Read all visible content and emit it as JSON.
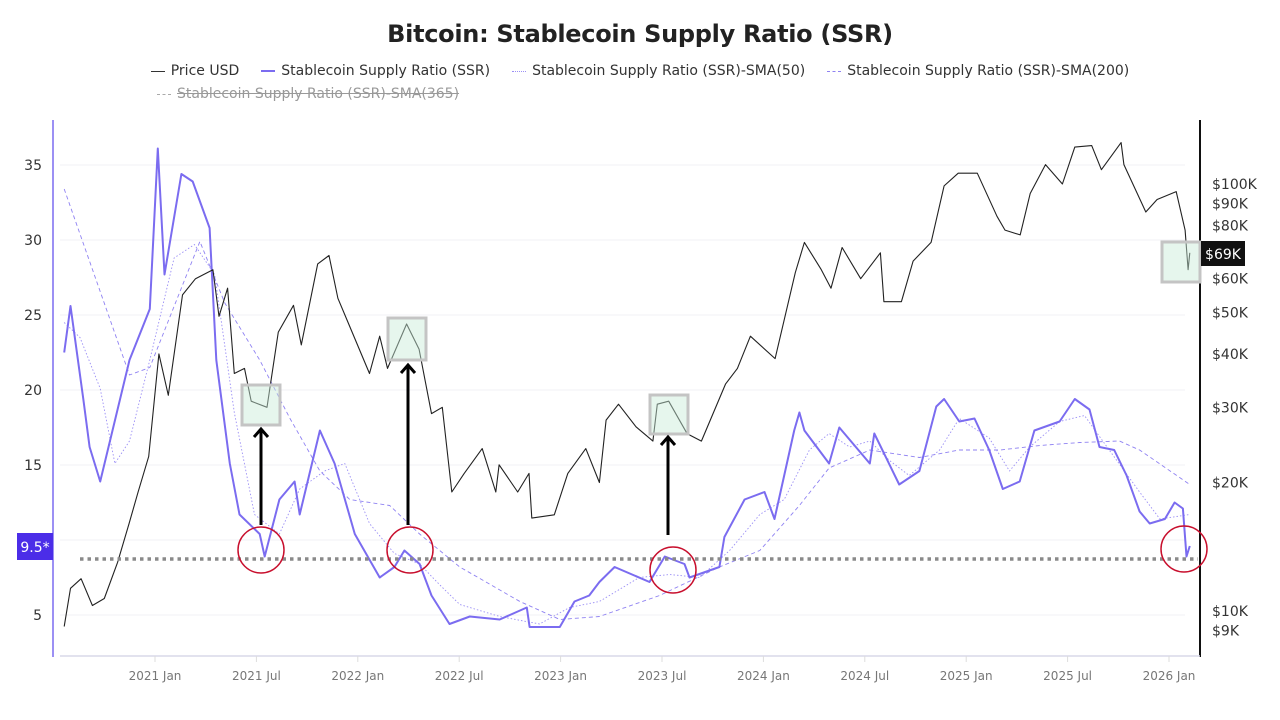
{
  "title": "Bitcoin: Stablecoin Supply Ratio (SSR)",
  "legend": [
    {
      "label": "Price USD",
      "color": "#333333",
      "style": "solid",
      "visible": true
    },
    {
      "label": "Stablecoin Supply Ratio (SSR)",
      "color": "#7b6cf0",
      "style": "solid",
      "visible": true
    },
    {
      "label": "Stablecoin Supply Ratio (SSR)-SMA(50)",
      "color": "#9b8ff5",
      "style": "dotted",
      "visible": true
    },
    {
      "label": "Stablecoin Supply Ratio (SSR)-SMA(200)",
      "color": "#8f82f2",
      "style": "dashed",
      "visible": true
    },
    {
      "label": "Stablecoin Supply Ratio (SSR)-SMA(365)",
      "color": "#aaaaaa",
      "style": "dashed",
      "visible": false
    }
  ],
  "chart_data": {
    "type": "line",
    "title": "Bitcoin: Stablecoin Supply Ratio (SSR)",
    "grid": true,
    "legend_position": "top",
    "x_ticks": [
      "2021 Jan",
      "2021 Jul",
      "2022 Jan",
      "2022 Jul",
      "2023 Jan",
      "2023 Jul",
      "2024 Jan",
      "2024 Jul",
      "2025 Jan",
      "2025 Jul",
      "2026 Jan"
    ],
    "x_tick_dates": [
      "2021-01-01",
      "2021-07-01",
      "2022-01-01",
      "2022-07-01",
      "2023-01-01",
      "2023-07-01",
      "2024-01-01",
      "2024-07-01",
      "2025-01-01",
      "2025-07-01",
      "2026-01-01"
    ],
    "xlim": [
      "2020-07-04",
      "2026-02-25"
    ],
    "y_left": {
      "scale": "linear",
      "ylim": [
        2.3,
        38
      ],
      "ticks": [
        5,
        15,
        20,
        25,
        30,
        35
      ],
      "tick_labels": [
        "5",
        "15",
        "20",
        "25",
        "30",
        "35"
      ],
      "color": "#7b6cf0"
    },
    "y_right": {
      "scale": "log",
      "ylim": [
        7900,
        141000
      ],
      "ticks": [
        9000,
        10000,
        20000,
        30000,
        40000,
        50000,
        60000,
        80000,
        90000,
        100000
      ],
      "tick_labels": [
        "$9K",
        "$10K",
        "$20K",
        "$30K",
        "$40K",
        "$50K",
        "$60K",
        "$80K",
        "$90K",
        "$100K"
      ],
      "color": "#111111"
    },
    "marker_left": {
      "label": "9.5*",
      "value": 9.5,
      "color": "#4b2de8"
    },
    "marker_right": {
      "label": "$69K",
      "value": 69000,
      "color": "#111111"
    },
    "series": [
      {
        "name": "Price USD",
        "axis": "right",
        "color": "#222222",
        "points": [
          [
            "2020-07-20",
            9200
          ],
          [
            "2020-08-01",
            11300
          ],
          [
            "2020-08-20",
            11900
          ],
          [
            "2020-09-10",
            10300
          ],
          [
            "2020-10-01",
            10700
          ],
          [
            "2020-10-25",
            13000
          ],
          [
            "2020-11-15",
            16000
          ],
          [
            "2020-12-01",
            19000
          ],
          [
            "2020-12-20",
            23000
          ],
          [
            "2021-01-08",
            40000
          ],
          [
            "2021-01-25",
            32000
          ],
          [
            "2021-02-20",
            55000
          ],
          [
            "2021-03-13",
            60000
          ],
          [
            "2021-04-14",
            63000
          ],
          [
            "2021-04-25",
            49000
          ],
          [
            "2021-05-10",
            57000
          ],
          [
            "2021-05-22",
            36000
          ],
          [
            "2021-06-10",
            37000
          ],
          [
            "2021-06-22",
            31000
          ],
          [
            "2021-07-20",
            30000
          ],
          [
            "2021-08-10",
            45000
          ],
          [
            "2021-09-07",
            52000
          ],
          [
            "2021-09-21",
            42000
          ],
          [
            "2021-10-20",
            65000
          ],
          [
            "2021-11-10",
            68000
          ],
          [
            "2021-11-26",
            54000
          ],
          [
            "2021-12-15",
            47000
          ],
          [
            "2022-01-22",
            36000
          ],
          [
            "2022-02-10",
            44000
          ],
          [
            "2022-02-24",
            37000
          ],
          [
            "2022-03-28",
            47000
          ],
          [
            "2022-04-20",
            41000
          ],
          [
            "2022-05-12",
            29000
          ],
          [
            "2022-06-01",
            30000
          ],
          [
            "2022-06-18",
            19000
          ],
          [
            "2022-07-10",
            21000
          ],
          [
            "2022-08-12",
            24000
          ],
          [
            "2022-09-06",
            19000
          ],
          [
            "2022-09-12",
            22000
          ],
          [
            "2022-10-15",
            19000
          ],
          [
            "2022-11-05",
            21000
          ],
          [
            "2022-11-10",
            16500
          ],
          [
            "2022-12-20",
            16800
          ],
          [
            "2023-01-14",
            21000
          ],
          [
            "2023-02-16",
            24000
          ],
          [
            "2023-03-10",
            20000
          ],
          [
            "2023-03-22",
            28000
          ],
          [
            "2023-04-14",
            30500
          ],
          [
            "2023-05-15",
            27000
          ],
          [
            "2023-06-15",
            25000
          ],
          [
            "2023-06-23",
            30500
          ],
          [
            "2023-07-13",
            31000
          ],
          [
            "2023-08-16",
            26000
          ],
          [
            "2023-09-11",
            25000
          ],
          [
            "2023-10-24",
            34000
          ],
          [
            "2023-11-15",
            37000
          ],
          [
            "2023-12-08",
            44000
          ],
          [
            "2024-01-22",
            39000
          ],
          [
            "2024-02-28",
            62000
          ],
          [
            "2024-03-14",
            73000
          ],
          [
            "2024-04-14",
            63000
          ],
          [
            "2024-05-01",
            57000
          ],
          [
            "2024-05-21",
            71000
          ],
          [
            "2024-06-24",
            60000
          ],
          [
            "2024-07-29",
            69000
          ],
          [
            "2024-08-05",
            53000
          ],
          [
            "2024-09-06",
            53000
          ],
          [
            "2024-09-27",
            66000
          ],
          [
            "2024-10-29",
            73000
          ],
          [
            "2024-11-22",
            99000
          ],
          [
            "2024-12-17",
            106000
          ],
          [
            "2025-01-21",
            106000
          ],
          [
            "2025-02-26",
            84000
          ],
          [
            "2025-03-10",
            78000
          ],
          [
            "2025-04-07",
            76000
          ],
          [
            "2025-04-25",
            95000
          ],
          [
            "2025-05-22",
            111000
          ],
          [
            "2025-06-22",
            100000
          ],
          [
            "2025-07-14",
            122000
          ],
          [
            "2025-08-14",
            123000
          ],
          [
            "2025-09-01",
            108000
          ],
          [
            "2025-10-06",
            125000
          ],
          [
            "2025-10-11",
            111000
          ],
          [
            "2025-11-20",
            86000
          ],
          [
            "2025-12-10",
            92000
          ],
          [
            "2026-01-14",
            96000
          ],
          [
            "2026-01-30",
            78000
          ],
          [
            "2026-02-05",
            63000
          ],
          [
            "2026-02-08",
            69000
          ]
        ]
      },
      {
        "name": "Stablecoin Supply Ratio (SSR)",
        "axis": "left",
        "color": "#7b6cf0",
        "points": [
          [
            "2020-07-20",
            22.5
          ],
          [
            "2020-08-01",
            25.6
          ],
          [
            "2020-08-24",
            19.4
          ],
          [
            "2020-09-05",
            16.2
          ],
          [
            "2020-09-24",
            13.9
          ],
          [
            "2020-11-16",
            22.0
          ],
          [
            "2020-12-22",
            25.4
          ],
          [
            "2021-01-06",
            36.1
          ],
          [
            "2021-01-18",
            27.7
          ],
          [
            "2021-02-18",
            34.4
          ],
          [
            "2021-03-08",
            33.9
          ],
          [
            "2021-04-08",
            30.8
          ],
          [
            "2021-04-20",
            22.0
          ],
          [
            "2021-05-14",
            15.1
          ],
          [
            "2021-06-01",
            11.7
          ],
          [
            "2021-07-07",
            10.4
          ],
          [
            "2021-07-16",
            8.9
          ],
          [
            "2021-08-12",
            12.7
          ],
          [
            "2021-09-09",
            13.9
          ],
          [
            "2021-09-18",
            11.7
          ],
          [
            "2021-10-24",
            17.3
          ],
          [
            "2021-11-20",
            15.1
          ],
          [
            "2021-12-26",
            10.4
          ],
          [
            "2022-02-10",
            7.5
          ],
          [
            "2022-03-06",
            8.2
          ],
          [
            "2022-03-24",
            9.3
          ],
          [
            "2022-04-21",
            8.4
          ],
          [
            "2022-05-12",
            6.3
          ],
          [
            "2022-06-14",
            4.4
          ],
          [
            "2022-07-20",
            4.9
          ],
          [
            "2022-09-13",
            4.7
          ],
          [
            "2022-11-01",
            5.5
          ],
          [
            "2022-11-06",
            4.2
          ],
          [
            "2022-12-30",
            4.2
          ],
          [
            "2023-01-26",
            5.9
          ],
          [
            "2023-02-22",
            6.3
          ],
          [
            "2023-03-10",
            7.2
          ],
          [
            "2023-04-07",
            8.2
          ],
          [
            "2023-06-09",
            7.2
          ],
          [
            "2023-07-06",
            8.9
          ],
          [
            "2023-08-11",
            8.4
          ],
          [
            "2023-08-20",
            7.5
          ],
          [
            "2023-10-13",
            8.2
          ],
          [
            "2023-10-22",
            10.2
          ],
          [
            "2023-11-28",
            12.7
          ],
          [
            "2024-01-03",
            13.2
          ],
          [
            "2024-01-21",
            11.4
          ],
          [
            "2024-02-08",
            14.3
          ],
          [
            "2024-02-26",
            17.3
          ],
          [
            "2024-03-05",
            18.5
          ],
          [
            "2024-03-14",
            17.3
          ],
          [
            "2024-04-28",
            15.1
          ],
          [
            "2024-05-16",
            17.5
          ],
          [
            "2024-07-10",
            15.1
          ],
          [
            "2024-07-18",
            17.1
          ],
          [
            "2024-09-02",
            13.7
          ],
          [
            "2024-10-08",
            14.6
          ],
          [
            "2024-11-08",
            18.9
          ],
          [
            "2024-11-22",
            19.4
          ],
          [
            "2024-12-19",
            17.9
          ],
          [
            "2025-01-16",
            18.1
          ],
          [
            "2025-02-12",
            16.0
          ],
          [
            "2025-03-06",
            13.4
          ],
          [
            "2025-04-06",
            13.9
          ],
          [
            "2025-05-02",
            17.3
          ],
          [
            "2025-06-17",
            17.9
          ],
          [
            "2025-07-14",
            19.4
          ],
          [
            "2025-08-10",
            18.7
          ],
          [
            "2025-08-28",
            16.2
          ],
          [
            "2025-09-24",
            16.0
          ],
          [
            "2025-10-16",
            14.3
          ],
          [
            "2025-11-09",
            11.9
          ],
          [
            "2025-11-27",
            11.1
          ],
          [
            "2025-12-24",
            11.4
          ],
          [
            "2026-01-11",
            12.5
          ],
          [
            "2026-01-26",
            12.1
          ],
          [
            "2026-02-02",
            8.9
          ],
          [
            "2026-02-08",
            9.6
          ]
        ]
      },
      {
        "name": "Stablecoin Supply Ratio (SSR)-SMA(50)",
        "axis": "left",
        "color": "#9b8ff5",
        "points": [
          [
            "2020-07-20",
            24.5
          ],
          [
            "2020-08-18",
            23.5
          ],
          [
            "2020-09-24",
            20.1
          ],
          [
            "2020-10-20",
            15.1
          ],
          [
            "2020-11-16",
            16.6
          ],
          [
            "2020-12-22",
            22.0
          ],
          [
            "2021-02-05",
            28.8
          ],
          [
            "2021-03-11",
            29.7
          ],
          [
            "2021-04-17",
            27.7
          ],
          [
            "2021-05-22",
            18.5
          ],
          [
            "2021-06-28",
            11.7
          ],
          [
            "2021-08-12",
            10.4
          ],
          [
            "2021-09-18",
            13.4
          ],
          [
            "2021-11-02",
            14.6
          ],
          [
            "2021-12-08",
            15.1
          ],
          [
            "2022-01-22",
            11.1
          ],
          [
            "2022-03-06",
            9.1
          ],
          [
            "2022-04-21",
            8.4
          ],
          [
            "2022-05-27",
            7.0
          ],
          [
            "2022-07-02",
            5.7
          ],
          [
            "2022-09-13",
            4.9
          ],
          [
            "2022-11-24",
            4.4
          ],
          [
            "2023-01-17",
            5.5
          ],
          [
            "2023-03-10",
            5.9
          ],
          [
            "2023-05-21",
            7.5
          ],
          [
            "2023-07-15",
            7.7
          ],
          [
            "2023-09-08",
            7.5
          ],
          [
            "2023-11-01",
            9.3
          ],
          [
            "2023-12-25",
            11.7
          ],
          [
            "2024-02-08",
            12.7
          ],
          [
            "2024-03-23",
            16.0
          ],
          [
            "2024-04-28",
            17.1
          ],
          [
            "2024-06-04",
            16.2
          ],
          [
            "2024-07-10",
            16.6
          ],
          [
            "2024-08-15",
            15.3
          ],
          [
            "2024-09-20",
            14.3
          ],
          [
            "2024-11-14",
            16.0
          ],
          [
            "2024-12-19",
            18.1
          ],
          [
            "2025-02-12",
            16.8
          ],
          [
            "2025-03-18",
            14.6
          ],
          [
            "2025-04-24",
            16.2
          ],
          [
            "2025-06-17",
            17.9
          ],
          [
            "2025-08-01",
            18.3
          ],
          [
            "2025-09-15",
            16.0
          ],
          [
            "2025-11-09",
            13.2
          ],
          [
            "2025-12-15",
            11.4
          ],
          [
            "2026-02-08",
            11.7
          ]
        ]
      },
      {
        "name": "Stablecoin Supply Ratio (SSR)-SMA(200)",
        "axis": "left",
        "color": "#8f82f2",
        "points": [
          [
            "2020-07-20",
            33.4
          ],
          [
            "2020-11-16",
            21.0
          ],
          [
            "2020-12-22",
            21.5
          ],
          [
            "2021-03-21",
            29.9
          ],
          [
            "2021-05-05",
            25.8
          ],
          [
            "2021-07-07",
            22.0
          ],
          [
            "2021-08-31",
            18.1
          ],
          [
            "2021-10-24",
            14.6
          ],
          [
            "2021-12-17",
            12.7
          ],
          [
            "2022-02-28",
            12.3
          ],
          [
            "2022-04-21",
            10.4
          ],
          [
            "2022-07-02",
            8.2
          ],
          [
            "2022-10-19",
            5.9
          ],
          [
            "2022-12-30",
            4.7
          ],
          [
            "2023-03-10",
            4.9
          ],
          [
            "2023-06-27",
            6.3
          ],
          [
            "2023-10-13",
            8.2
          ],
          [
            "2023-12-25",
            9.3
          ],
          [
            "2024-03-05",
            12.3
          ],
          [
            "2024-04-28",
            14.8
          ],
          [
            "2024-07-10",
            16.0
          ],
          [
            "2024-10-08",
            15.5
          ],
          [
            "2024-12-19",
            16.0
          ],
          [
            "2025-03-01",
            16.0
          ],
          [
            "2025-05-12",
            16.3
          ],
          [
            "2025-07-23",
            16.5
          ],
          [
            "2025-10-03",
            16.6
          ],
          [
            "2025-11-09",
            16.0
          ],
          [
            "2026-02-08",
            13.7
          ]
        ]
      }
    ]
  }
}
